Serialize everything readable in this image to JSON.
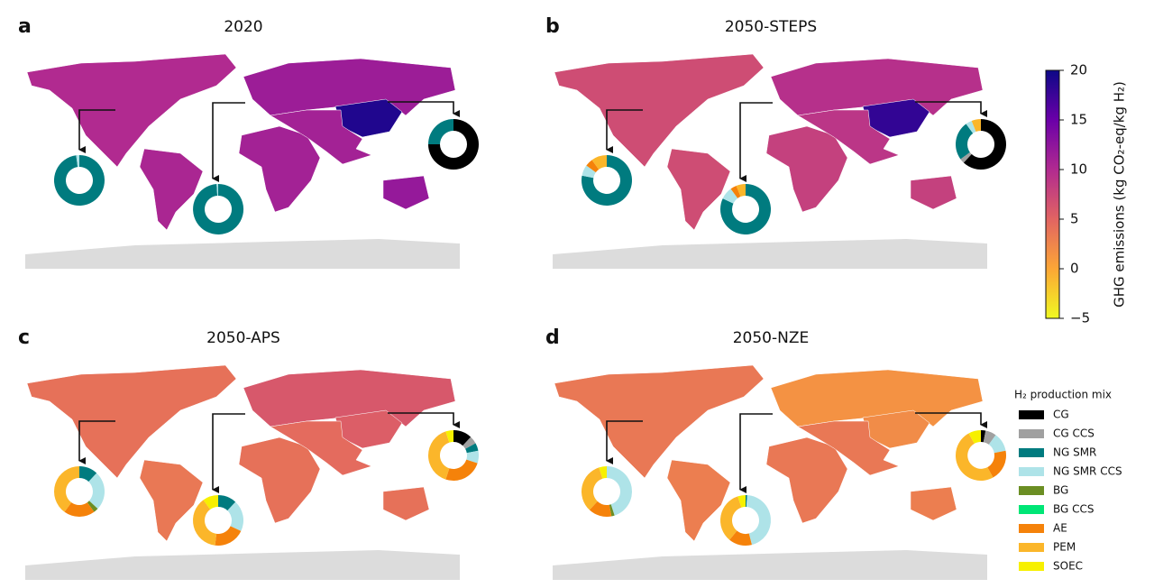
{
  "chart_data": {
    "type": "choropleth",
    "panels": [
      {
        "letter": "a",
        "title": "2020",
        "region_values": [
          10,
          10.5,
          11.5,
          19,
          11,
          11,
          12
        ],
        "donuts": [
          {
            "shares": [
              0,
              0,
              98,
              2,
              0,
              0,
              0,
              0,
              0
            ]
          },
          {
            "shares": [
              0,
              0,
              99,
              1,
              0,
              0,
              0,
              0,
              0
            ]
          },
          {
            "shares": [
              75,
              0,
              25,
              0,
              0,
              0,
              0,
              0,
              0
            ]
          }
        ]
      },
      {
        "letter": "b",
        "title": "2050-STEPS",
        "region_values": [
          7,
          7,
          9.5,
          18,
          8,
          9,
          8
        ],
        "donuts": [
          {
            "shares": [
              0,
              0,
              78,
              7,
              0,
              0,
              5,
              10,
              0
            ]
          },
          {
            "shares": [
              0,
              0,
              82,
              8,
              0,
              0,
              4,
              6,
              0
            ]
          },
          {
            "shares": [
              62,
              3,
              25,
              4,
              0,
              0,
              0,
              6,
              0
            ]
          }
        ]
      },
      {
        "letter": "c",
        "title": "2050-APS",
        "region_values": [
          4,
          3.5,
          6,
          5.5,
          4,
          4.5,
          4
        ],
        "donuts": [
          {
            "shares": [
              0,
              0,
              12,
              25,
              3,
              0,
              20,
              40,
              0
            ]
          },
          {
            "shares": [
              0,
              0,
              12,
              20,
              0,
              0,
              20,
              38,
              10
            ]
          },
          {
            "shares": [
              12,
              5,
              5,
              8,
              0,
              0,
              25,
              40,
              5
            ]
          }
        ]
      },
      {
        "letter": "d",
        "title": "2050-NZE",
        "region_values": [
          3.5,
          3,
          1.5,
          2,
          3.5,
          3.5,
          3
        ],
        "donuts": [
          {
            "shares": [
              0,
              0,
              0,
              45,
              2,
              0,
              15,
              33,
              5
            ]
          },
          {
            "shares": [
              0,
              0,
              1,
              45,
              0,
              0,
              15,
              34,
              5
            ]
          },
          {
            "shares": [
              3,
              7,
              0,
              12,
              0,
              0,
              20,
              50,
              8
            ]
          }
        ]
      }
    ],
    "colorbar": {
      "label": "GHG emissions (kg CO₂-eq/kg H₂)",
      "lim": [
        -5,
        20
      ],
      "ticks": [
        {
          "value": -5,
          "label": "−5"
        },
        0,
        5,
        10,
        15,
        20
      ],
      "colormap": [
        "#f0f921",
        "#fca636",
        "#e16462",
        "#b12a90",
        "#6a00a8",
        "#0d0887"
      ]
    },
    "legend": {
      "title": "H₂ production mix",
      "items": [
        {
          "name": "CG",
          "color": "#000000"
        },
        {
          "name": "CG CCS",
          "color": "#a0a0a0"
        },
        {
          "name": "NG SMR",
          "color": "#007b7f"
        },
        {
          "name": "NG SMR CCS",
          "color": "#aee3e8"
        },
        {
          "name": "BG",
          "color": "#6b8e23"
        },
        {
          "name": "BG CCS",
          "color": "#00e676"
        },
        {
          "name": "AE",
          "color": "#f5820a"
        },
        {
          "name": "PEM",
          "color": "#fbb62a"
        },
        {
          "name": "SOEC",
          "color": "#f7f000"
        }
      ]
    }
  }
}
